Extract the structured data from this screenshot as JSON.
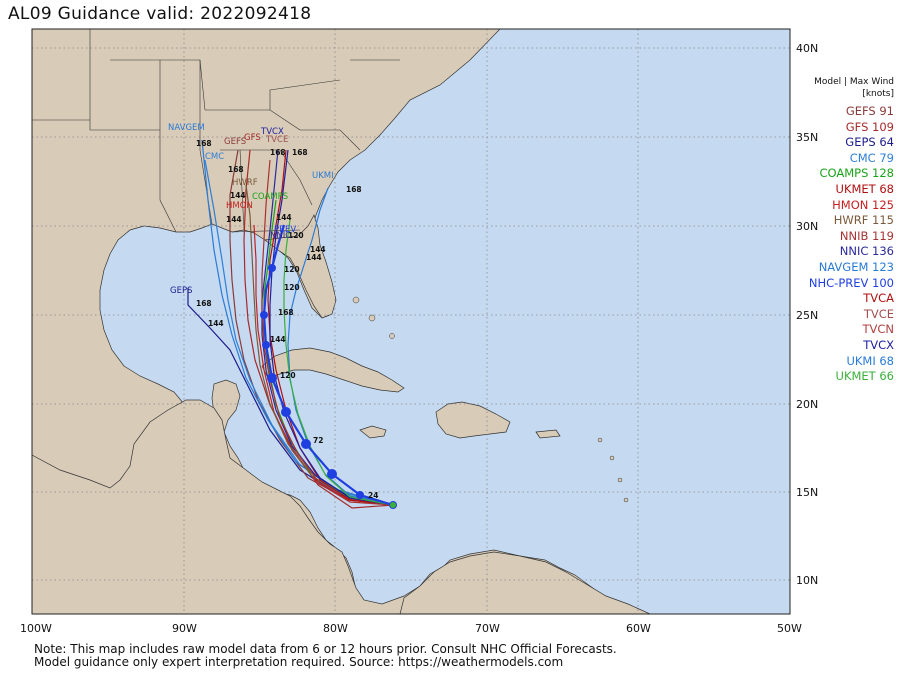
{
  "title": "AL09  Guidance valid: 2022092418",
  "legend": {
    "header_line1": "Model | Max Wind",
    "header_line2": "[knots]",
    "entries": [
      {
        "label": "GEFS 91",
        "color": "#8b3a3a"
      },
      {
        "label": "GFS 109",
        "color": "#a52a2a"
      },
      {
        "label": "GEPS 64",
        "color": "#1c1c8c"
      },
      {
        "label": "CMC 79",
        "color": "#2f7fd6"
      },
      {
        "label": "COAMPS 128",
        "color": "#1aa31a"
      },
      {
        "label": "UKMET 68",
        "color": "#b01010"
      },
      {
        "label": "HMON 125",
        "color": "#c62020"
      },
      {
        "label": "HWRF 115",
        "color": "#7a5a3a"
      },
      {
        "label": "NNIB 119",
        "color": "#a83232"
      },
      {
        "label": "NNIC 136",
        "color": "#2a2a9a"
      },
      {
        "label": "NAVGEM 123",
        "color": "#2a7ad6"
      },
      {
        "label": "NHC-PREV 100",
        "color": "#1f3fe0"
      },
      {
        "label": "TVCA",
        "color": "#b01010"
      },
      {
        "label": "TVCE",
        "color": "#a05050"
      },
      {
        "label": "TVCN",
        "color": "#b04040"
      },
      {
        "label": "TVCX",
        "color": "#2020a0"
      },
      {
        "label": "UKMI 68",
        "color": "#2a7ad6"
      },
      {
        "label": "UKMET 66",
        "color": "#3ab03a"
      }
    ]
  },
  "axes": {
    "lon_labels": [
      "100W",
      "90W",
      "80W",
      "70W",
      "60W",
      "50W"
    ],
    "lat_labels": [
      "10N",
      "15N",
      "20N",
      "25N",
      "30N",
      "35N",
      "40N"
    ]
  },
  "map_labels": [
    {
      "text": "NAVGEM",
      "color": "#2a7ad6"
    },
    {
      "text": "CMC",
      "color": "#2f7fd6"
    },
    {
      "text": "GEFS",
      "color": "#8b3a3a"
    },
    {
      "text": "TVCX",
      "color": "#2020a0"
    },
    {
      "text": "GFS",
      "color": "#a52a2a"
    },
    {
      "text": "TVCE",
      "color": "#a05050"
    },
    {
      "text": "HWRF",
      "color": "#7a5a3a"
    },
    {
      "text": "COAMPS",
      "color": "#1aa31a"
    },
    {
      "text": "HMON",
      "color": "#c62020"
    },
    {
      "text": "UKMI",
      "color": "#2a7ad6"
    },
    {
      "text": "GEPS",
      "color": "#1c1c8c"
    },
    {
      "text": "NNIC",
      "color": "#2a2a9a"
    },
    {
      "text": "PREV",
      "color": "#1f3fe0"
    }
  ],
  "footnote_line1": "Note: This map includes raw model data from 6 or 12 hours prior. Consult NHC Official Forecasts.",
  "footnote_line2": "Model guidance only expert interpretation required. Source: https://weathermodels.com",
  "colors": {
    "ocean": "#c5daf0",
    "land": "#d8cbb8",
    "border": "#333333",
    "nhc_track": "#1f3fe0"
  }
}
